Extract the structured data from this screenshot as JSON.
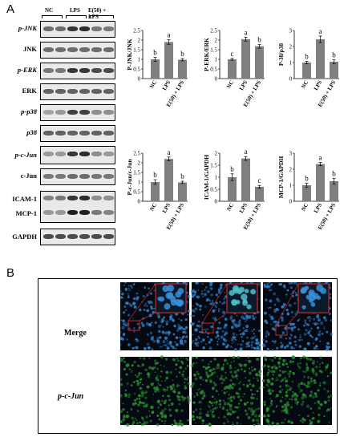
{
  "panel_a": {
    "letter": "A",
    "group_labels": [
      "NC",
      "LPS",
      "E(50) + LPS"
    ],
    "blot_labels": [
      "p-JNK",
      "JNK",
      "p-ERK",
      "ERK",
      "p-p38",
      "p38",
      "p-c-Jun",
      "c-Jun",
      "ICAM-1",
      "MCP-1",
      "GAPDH"
    ]
  },
  "panel_b": {
    "letter": "B",
    "row_labels": [
      "Merge",
      "p-c-Jun"
    ]
  },
  "chart_data": [
    {
      "type": "bar",
      "categories": [
        "NC",
        "LPS",
        "E(50) + LPS"
      ],
      "values": [
        1.0,
        1.9,
        0.98
      ],
      "errors": [
        0.1,
        0.12,
        0.06
      ],
      "letters": [
        "b",
        "a",
        "b"
      ],
      "ylabel": "P-JNK/JNK",
      "ylim": [
        0,
        2.5
      ],
      "yticks": [
        "0",
        "0.5",
        "1",
        "1.5",
        "2",
        "2.5"
      ]
    },
    {
      "type": "bar",
      "categories": [
        "NC",
        "LPS",
        "E(50) + LPS"
      ],
      "values": [
        1.0,
        2.05,
        1.68
      ],
      "errors": [
        0.05,
        0.1,
        0.1
      ],
      "letters": [
        "c",
        "a",
        "b"
      ],
      "ylabel": "P-ERK/ERK",
      "ylim": [
        0,
        2.5
      ],
      "yticks": [
        "0",
        "0.5",
        "1",
        "1.5",
        "2",
        "2.5"
      ]
    },
    {
      "type": "bar",
      "categories": [
        "NC",
        "LPS",
        "E(50) + LPS"
      ],
      "values": [
        1.0,
        2.45,
        1.05
      ],
      "errors": [
        0.08,
        0.2,
        0.12
      ],
      "letters": [
        "b",
        "a",
        "b"
      ],
      "ylabel": "P-38/p38",
      "ylim": [
        0,
        3
      ],
      "yticks": [
        "0",
        "1",
        "2",
        "3"
      ]
    },
    {
      "type": "bar",
      "categories": [
        "NC",
        "LPS",
        "E(50) + LPS"
      ],
      "values": [
        1.0,
        2.2,
        0.98
      ],
      "errors": [
        0.12,
        0.1,
        0.06
      ],
      "letters": [
        "b",
        "a",
        "b"
      ],
      "ylabel": "P-c-Jun/c-Jun",
      "ylim": [
        0,
        2.5
      ],
      "yticks": [
        "0",
        "0.5",
        "1",
        "1.5",
        "2",
        "2.5"
      ]
    },
    {
      "type": "bar",
      "categories": [
        "NC",
        "LPS",
        "E(50) + LPS"
      ],
      "values": [
        1.0,
        1.78,
        0.6
      ],
      "errors": [
        0.14,
        0.08,
        0.06
      ],
      "letters": [
        "b",
        "a",
        "c"
      ],
      "ylabel": "ICAM-1/GAPDH",
      "ylim": [
        0,
        2
      ],
      "yticks": [
        "0",
        "0.5",
        "1",
        "1.5",
        "2"
      ]
    },
    {
      "type": "bar",
      "categories": [
        "NC",
        "LPS",
        "E(50) + LPS"
      ],
      "values": [
        1.0,
        2.32,
        1.25
      ],
      "errors": [
        0.12,
        0.1,
        0.18
      ],
      "letters": [
        "b",
        "a",
        "b"
      ],
      "ylabel": "MCP-1/GAPDH",
      "ylim": [
        0,
        3
      ],
      "yticks": [
        "0",
        "1",
        "2",
        "3"
      ]
    }
  ],
  "colors": {
    "bar": "#7f7f7f",
    "axis": "#000000",
    "blot_bg": "#e9e9e9",
    "micro_bg": "#050a12",
    "merge_cells": "#2f7fc7",
    "green_cells": "#2a8a30",
    "inset_border": "#c0282d"
  }
}
